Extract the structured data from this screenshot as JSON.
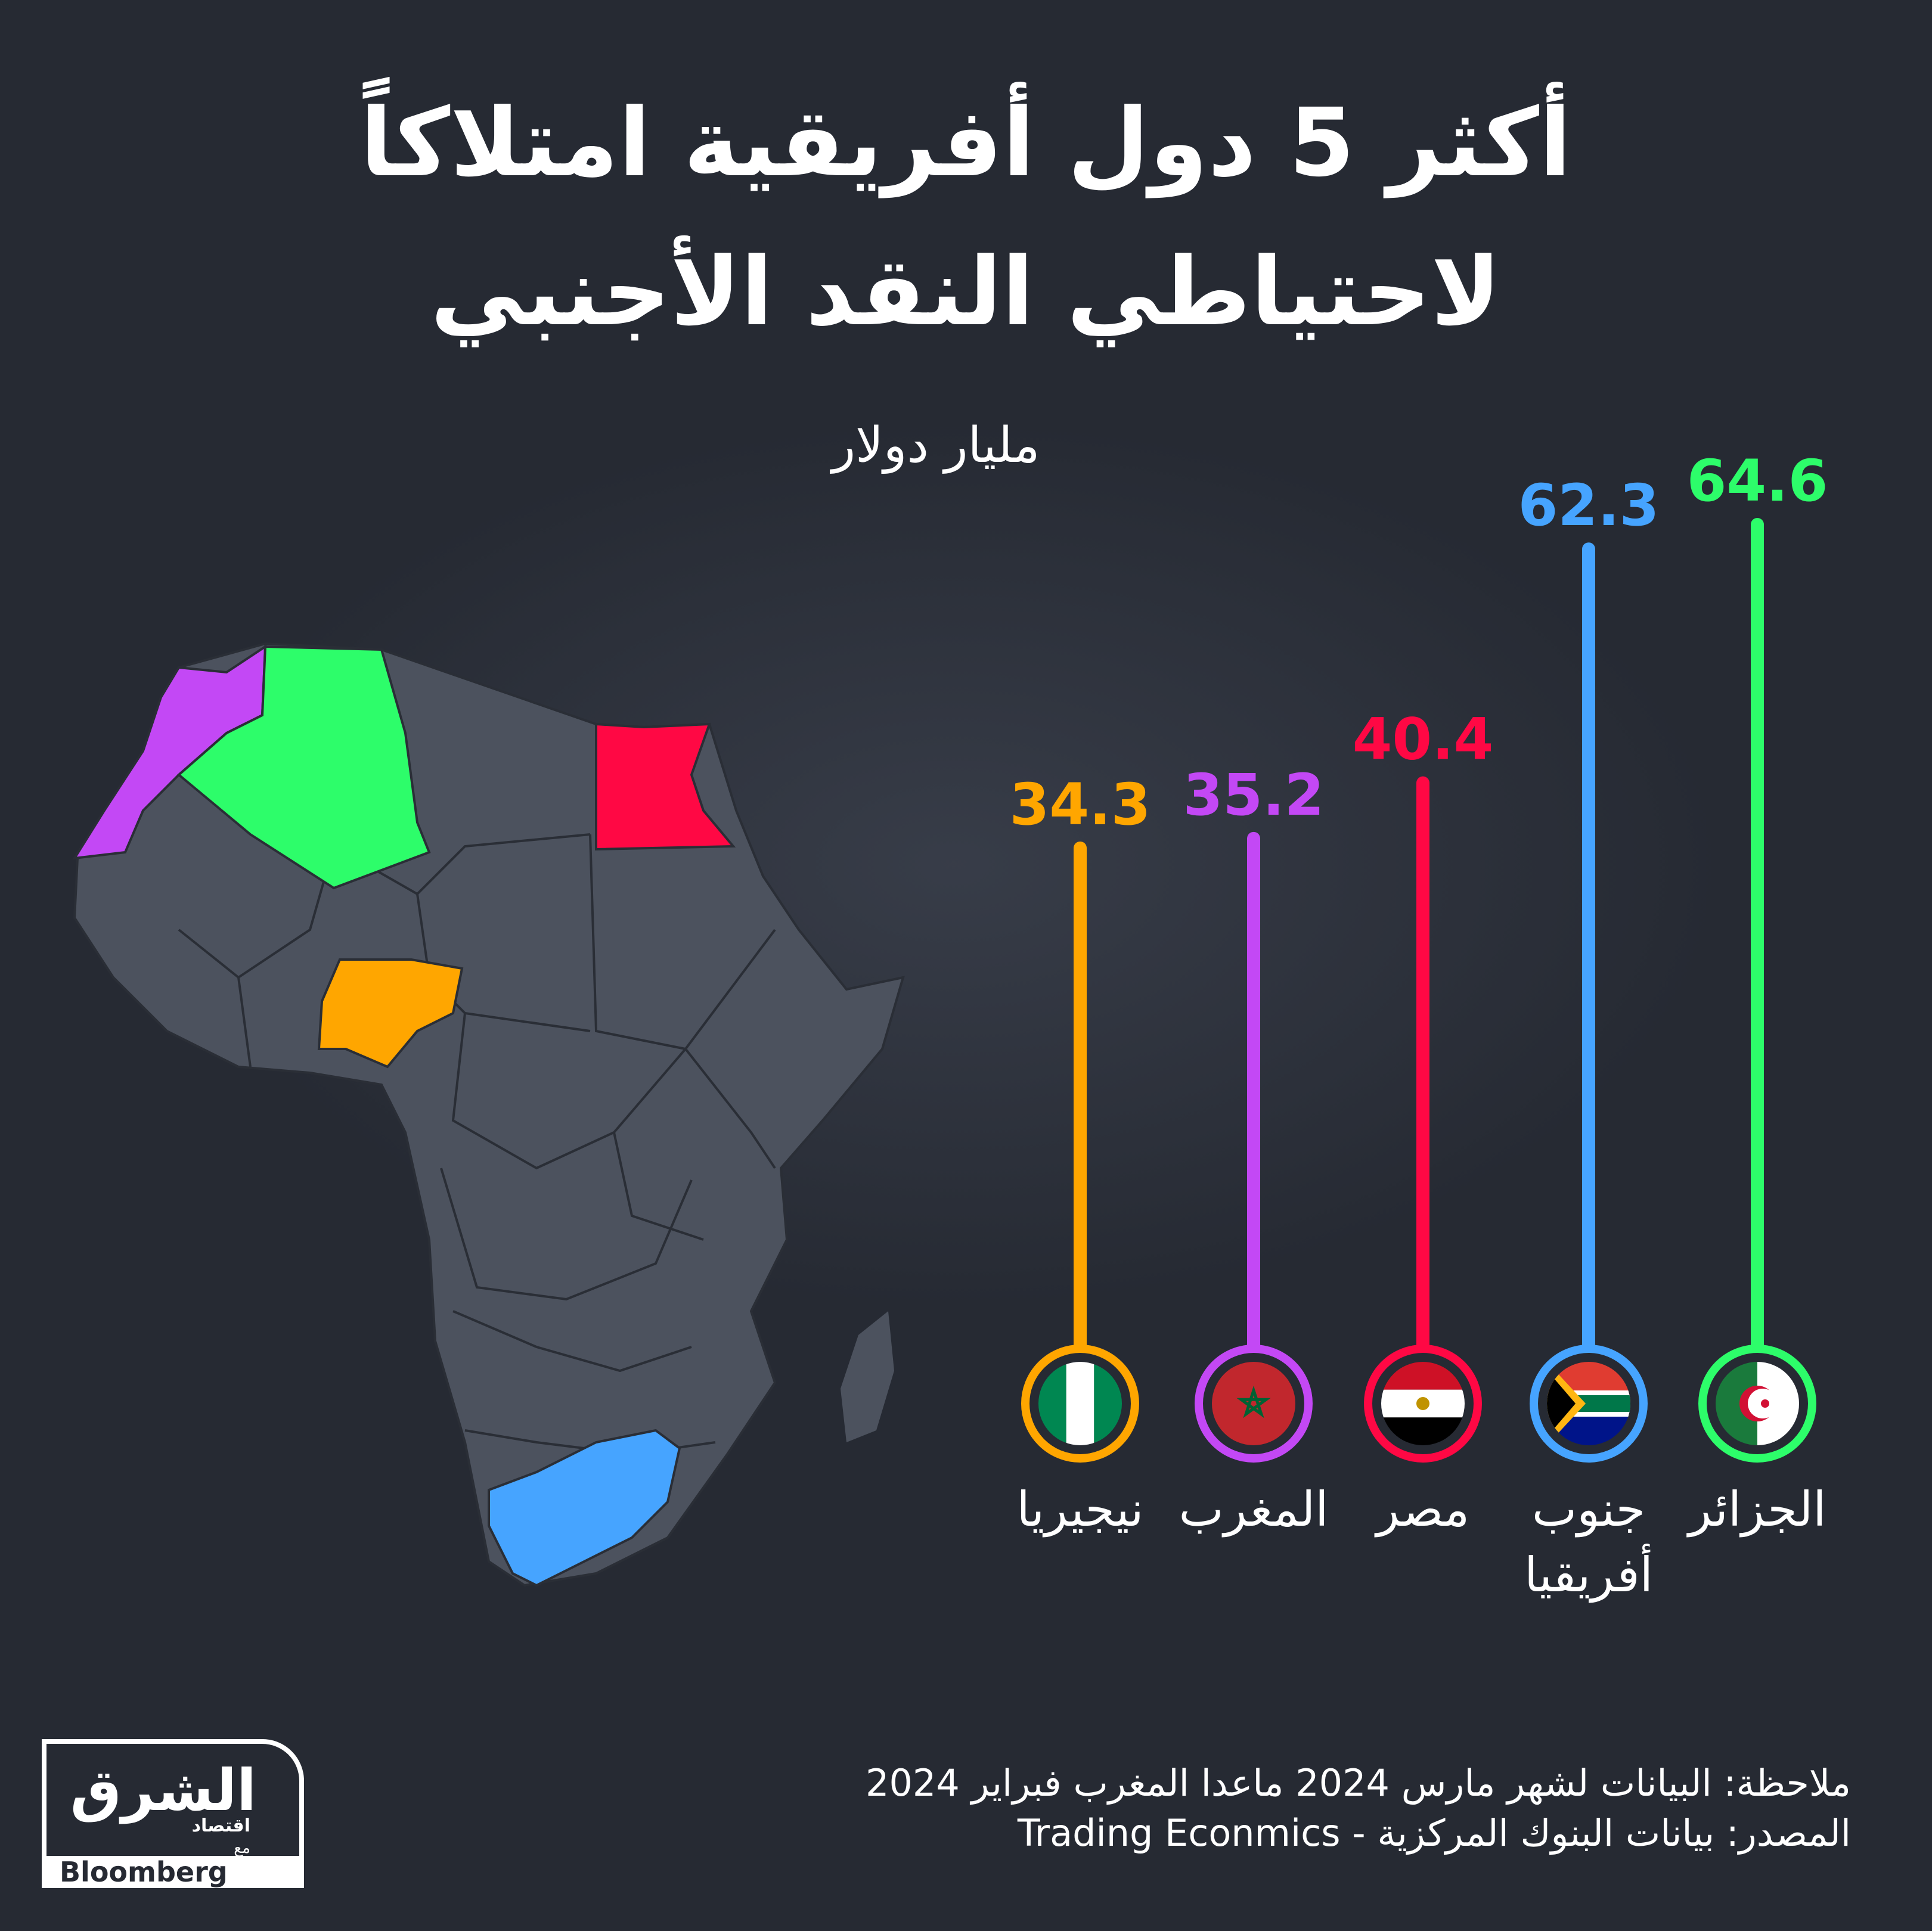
{
  "title": {
    "line1": "أكثر 5 دول أفريقية امتلاكاً",
    "line2": "لاحتياطي النقد الأجنبي"
  },
  "unit": "مليار دولار",
  "chart_data": {
    "type": "bar",
    "orientation": "vertical-lollipop",
    "title": "أكثر 5 دول أفريقية امتلاكاً لاحتياطي النقد الأجنبي",
    "ylabel": "مليار دولار",
    "ylim": [
      0,
      64.6
    ],
    "categories": [
      "الجزائر",
      "جنوب أفريقيا",
      "مصر",
      "المغرب",
      "نيجيريا"
    ],
    "values": [
      64.6,
      62.3,
      40.4,
      35.2,
      34.3
    ],
    "value_labels": [
      "64.6",
      "62.3",
      "40.4",
      "35.2",
      "34.3"
    ],
    "label_lines": [
      [
        "الجزائر"
      ],
      [
        "جنوب",
        "أفريقيا"
      ],
      [
        "مصر"
      ],
      [
        "المغرب"
      ],
      [
        "نيجيريا"
      ]
    ],
    "colors": [
      "#2dfd6a",
      "#46a4ff",
      "#ff0844",
      "#c348f5",
      "#ffa600"
    ],
    "flags": [
      "algeria-flag",
      "south-africa-flag",
      "egypt-flag",
      "morocco-flag",
      "nigeria-flag"
    ],
    "grid": false,
    "legend": "none"
  },
  "map": {
    "highlighted": [
      {
        "country": "المغرب",
        "color": "#c348f5"
      },
      {
        "country": "الجزائر",
        "color": "#2dfd6a"
      },
      {
        "country": "مصر",
        "color": "#ff0844"
      },
      {
        "country": "نيجيريا",
        "color": "#ffa600"
      },
      {
        "country": "جنوب أفريقيا",
        "color": "#46a4ff"
      }
    ],
    "base_color": "#4c525e"
  },
  "footer": {
    "note": "ملاحظة: البيانات لشهر مارس 2024  ماعدا المغرب فبراير 2024",
    "source": "المصدر: بيانات البنوك المركزية - Trading Econmics"
  },
  "logo": {
    "main": "الشرق",
    "sub": "اقتصاد",
    "with": "مع",
    "partner": "Bloomberg"
  }
}
